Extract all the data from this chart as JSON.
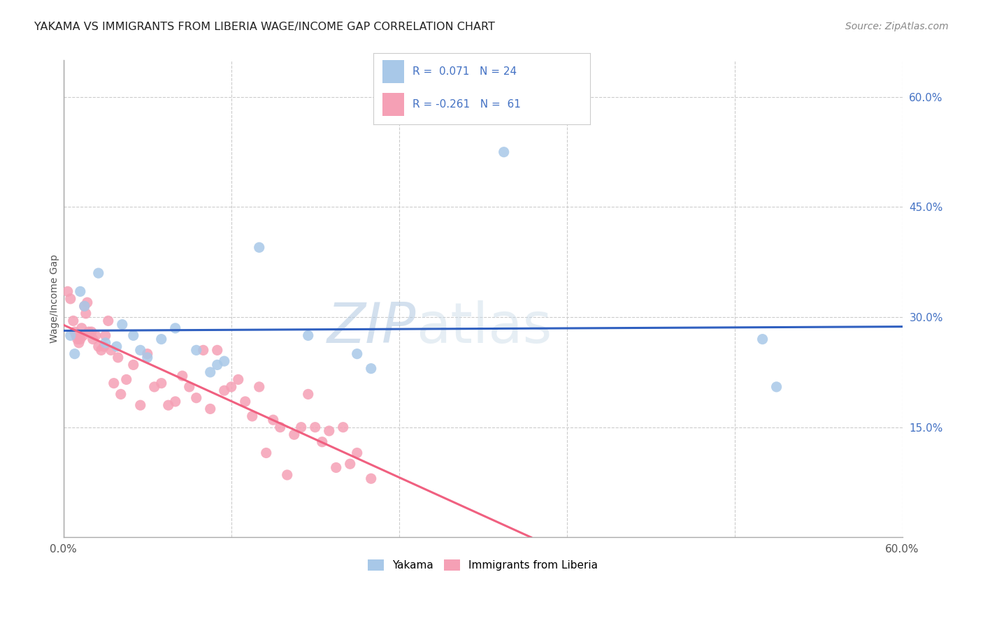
{
  "title": "YAKAMA VS IMMIGRANTS FROM LIBERIA WAGE/INCOME GAP CORRELATION CHART",
  "source": "Source: ZipAtlas.com",
  "ylabel": "Wage/Income Gap",
  "yakama_color": "#a8c8e8",
  "liberia_color": "#f5a0b5",
  "yakama_line_color": "#3060c0",
  "liberia_line_color": "#f06080",
  "watermark_zip": "ZIP",
  "watermark_atlas": "atlas",
  "yakama_points": [
    [
      0.5,
      27.5
    ],
    [
      1.2,
      33.5
    ],
    [
      1.5,
      31.5
    ],
    [
      2.5,
      36.0
    ],
    [
      3.0,
      26.5
    ],
    [
      3.8,
      26.0
    ],
    [
      4.2,
      29.0
    ],
    [
      5.0,
      27.5
    ],
    [
      5.5,
      25.5
    ],
    [
      6.0,
      24.5
    ],
    [
      7.0,
      27.0
    ],
    [
      8.0,
      28.5
    ],
    [
      9.5,
      25.5
    ],
    [
      10.5,
      22.5
    ],
    [
      11.0,
      23.5
    ],
    [
      11.5,
      24.0
    ],
    [
      14.0,
      39.5
    ],
    [
      17.5,
      27.5
    ],
    [
      21.0,
      25.0
    ],
    [
      22.0,
      23.0
    ],
    [
      50.0,
      27.0
    ],
    [
      51.0,
      20.5
    ],
    [
      31.5,
      52.5
    ],
    [
      0.8,
      25.0
    ]
  ],
  "liberia_points": [
    [
      0.3,
      33.5
    ],
    [
      0.5,
      32.5
    ],
    [
      0.7,
      29.5
    ],
    [
      0.8,
      28.0
    ],
    [
      0.9,
      27.5
    ],
    [
      1.0,
      27.0
    ],
    [
      1.1,
      26.5
    ],
    [
      1.2,
      27.0
    ],
    [
      1.3,
      28.5
    ],
    [
      1.4,
      27.5
    ],
    [
      1.5,
      31.5
    ],
    [
      1.6,
      30.5
    ],
    [
      1.7,
      32.0
    ],
    [
      1.8,
      28.0
    ],
    [
      2.0,
      28.0
    ],
    [
      2.1,
      27.0
    ],
    [
      2.3,
      27.5
    ],
    [
      2.5,
      26.0
    ],
    [
      2.7,
      25.5
    ],
    [
      2.9,
      26.0
    ],
    [
      3.0,
      27.5
    ],
    [
      3.2,
      29.5
    ],
    [
      3.4,
      25.5
    ],
    [
      3.6,
      21.0
    ],
    [
      3.9,
      24.5
    ],
    [
      4.1,
      19.5
    ],
    [
      4.5,
      21.5
    ],
    [
      5.0,
      23.5
    ],
    [
      5.5,
      18.0
    ],
    [
      6.0,
      25.0
    ],
    [
      6.5,
      20.5
    ],
    [
      7.0,
      21.0
    ],
    [
      7.5,
      18.0
    ],
    [
      8.0,
      18.5
    ],
    [
      8.5,
      22.0
    ],
    [
      9.0,
      20.5
    ],
    [
      9.5,
      19.0
    ],
    [
      10.0,
      25.5
    ],
    [
      10.5,
      17.5
    ],
    [
      11.0,
      25.5
    ],
    [
      11.5,
      20.0
    ],
    [
      12.0,
      20.5
    ],
    [
      12.5,
      21.5
    ],
    [
      13.0,
      18.5
    ],
    [
      13.5,
      16.5
    ],
    [
      14.0,
      20.5
    ],
    [
      14.5,
      11.5
    ],
    [
      15.0,
      16.0
    ],
    [
      15.5,
      15.0
    ],
    [
      16.0,
      8.5
    ],
    [
      16.5,
      14.0
    ],
    [
      17.0,
      15.0
    ],
    [
      17.5,
      19.5
    ],
    [
      18.0,
      15.0
    ],
    [
      18.5,
      13.0
    ],
    [
      19.0,
      14.5
    ],
    [
      19.5,
      9.5
    ],
    [
      20.0,
      15.0
    ],
    [
      20.5,
      10.0
    ],
    [
      21.0,
      11.5
    ],
    [
      22.0,
      8.0
    ]
  ]
}
